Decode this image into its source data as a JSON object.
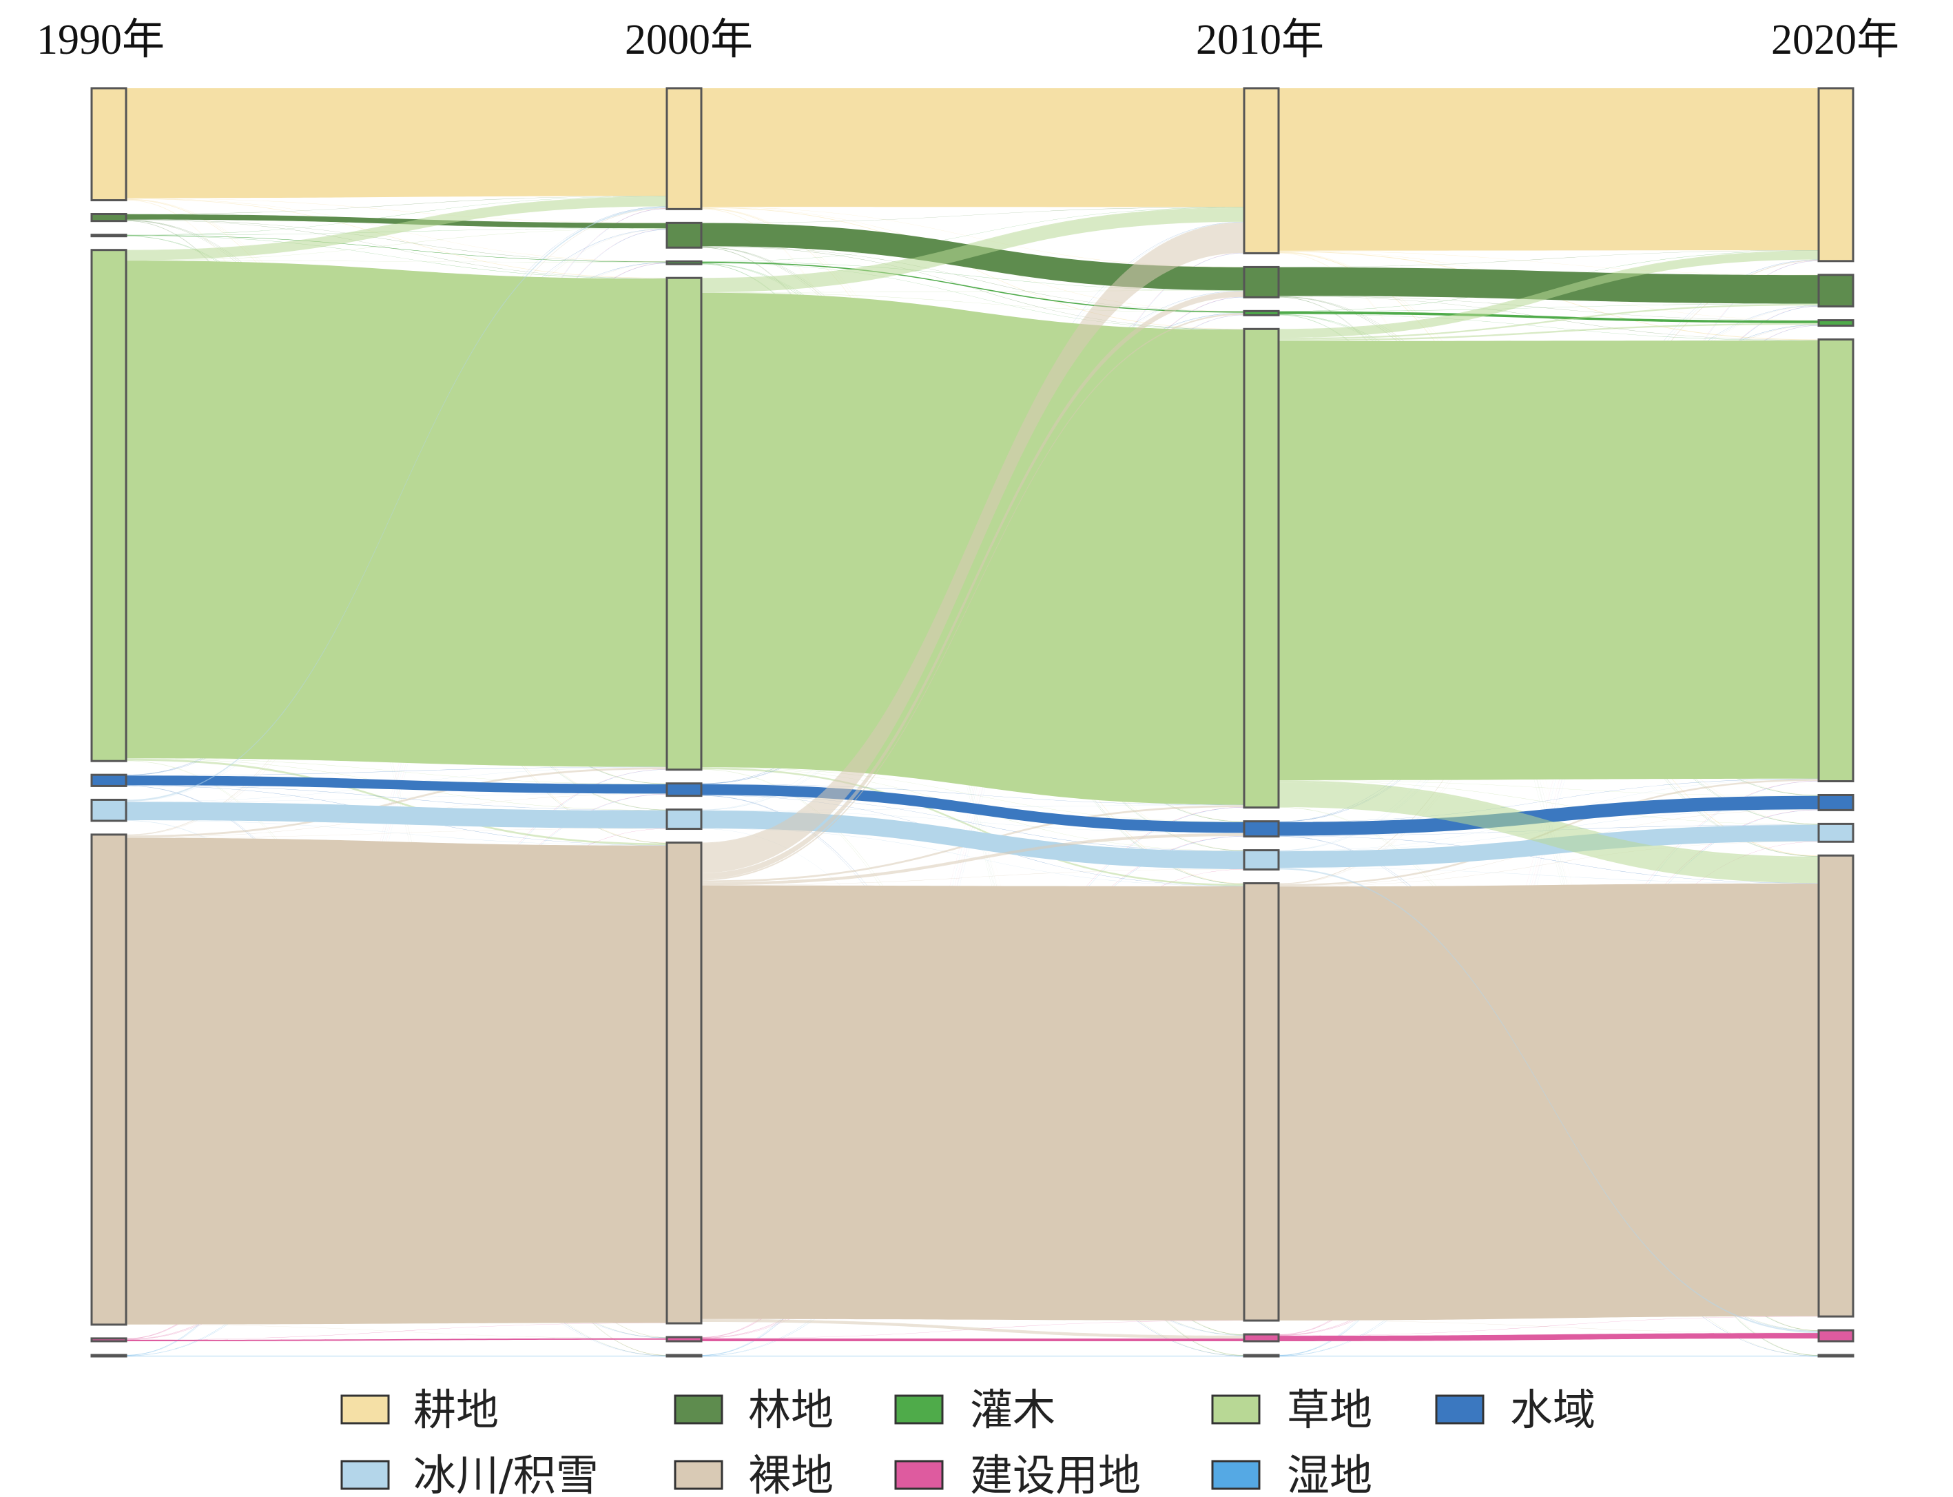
{
  "chart_data": {
    "type": "sankey",
    "stages": [
      "1990年",
      "2000年",
      "2010年",
      "2020年"
    ],
    "categories": [
      {
        "key": "cropland",
        "label": "耕地",
        "color": "#f5e0a6",
        "stroke": "#8a7a55"
      },
      {
        "key": "forest",
        "label": "林地",
        "color": "#5e8c4e",
        "stroke": "#35522b"
      },
      {
        "key": "shrub",
        "label": "灌木",
        "color": "#4fab4a",
        "stroke": "#2e6b2b"
      },
      {
        "key": "grassland",
        "label": "草地",
        "color": "#b8d895",
        "stroke": "#6d8a52"
      },
      {
        "key": "water",
        "label": "水域",
        "color": "#3b78c0",
        "stroke": "#1f4d85"
      },
      {
        "key": "glacier",
        "label": "冰川/积雪",
        "color": "#b4d6ea",
        "stroke": "#6b8fa5"
      },
      {
        "key": "barren",
        "label": "裸地",
        "color": "#d9cab5",
        "stroke": "#7d7060"
      },
      {
        "key": "builtup",
        "label": "建设用地",
        "color": "#de5b9f",
        "stroke": "#8c2e61"
      },
      {
        "key": "wetland",
        "label": "湿地",
        "color": "#55a9e4",
        "stroke": "#2a6f9e"
      }
    ],
    "node_values": [
      [
        80,
        5,
        1,
        365,
        8,
        15,
        350,
        2,
        1
      ],
      [
        88,
        18,
        2,
        358,
        9,
        14,
        350,
        3,
        1
      ],
      [
        120,
        22,
        3,
        348,
        11,
        14,
        318,
        5,
        1
      ],
      [
        126,
        23,
        4,
        322,
        11,
        13,
        336,
        8,
        1
      ]
    ],
    "legend": {
      "rows": [
        [
          "cropland",
          "forest",
          "shrub",
          "grassland",
          "water"
        ],
        [
          "glacier",
          "barren",
          "builtup",
          "wetland"
        ]
      ]
    },
    "grid": false,
    "legend_position": "bottom"
  }
}
